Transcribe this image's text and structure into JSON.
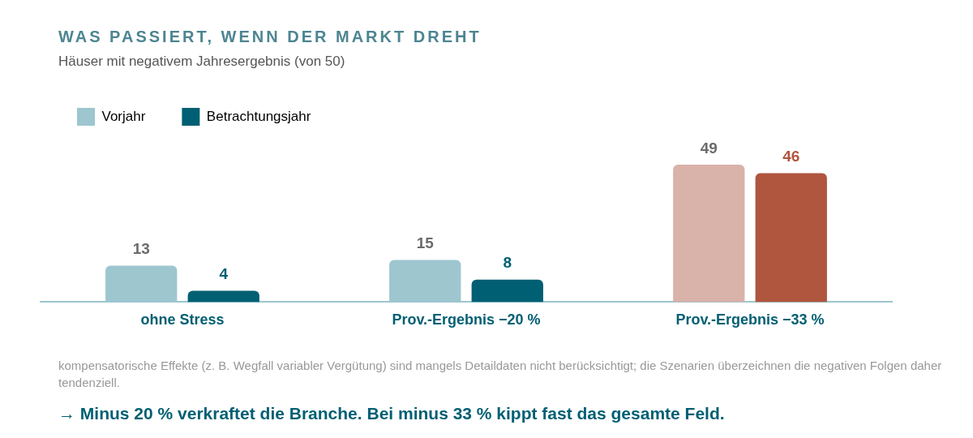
{
  "chart_data": {
    "type": "bar",
    "title": "WAS PASSIERT, WENN DER MARKT DREHT",
    "subtitle": "Häuser mit negativem Jahresergebnis (von 50)",
    "categories": [
      "ohne Stress",
      "Prov.-Ergebnis −20 %",
      "Prov.-Ergebnis −33 %"
    ],
    "series": [
      {
        "name": "Vorjahr",
        "color": "#9dc6cf",
        "colors": [
          "#9dc6cf",
          "#9dc6cf",
          "#d9b2a9"
        ],
        "values": [
          13,
          15,
          49
        ]
      },
      {
        "name": "Betrachtungsjahr",
        "color": "#005f73",
        "colors": [
          "#005f73",
          "#005f73",
          "#b0553e"
        ],
        "values": [
          4,
          8,
          46
        ]
      }
    ],
    "data_labels": true,
    "legend": "top left",
    "grid": false,
    "annotations": [
      "kompensatorische Effekte (z. B. Wegfall variabler Vergütung) sind mangels Detaildaten nicht berücksichtigt; die Szenarien überzeichnen die negativen Folgen daher tendenziell.",
      "→ Minus 20 % verkraftet die Branche. Bei minus 33 % kippt fast das gesamte Feld."
    ]
  }
}
